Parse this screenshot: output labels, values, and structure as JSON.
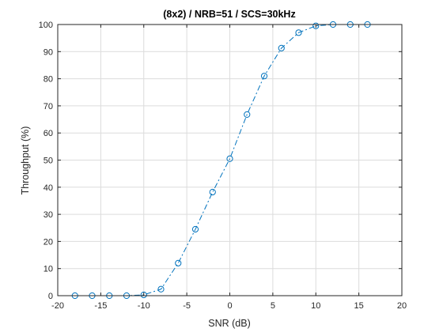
{
  "chart_data": {
    "type": "line",
    "title": "(8x2) / NRB=51 / SCS=30kHz",
    "xlabel": "SNR (dB)",
    "ylabel": "Throughput (%)",
    "xlim": [
      -20,
      20
    ],
    "ylim": [
      0,
      100
    ],
    "xticks": [
      -20,
      -15,
      -10,
      -5,
      0,
      5,
      10,
      15,
      20
    ],
    "yticks": [
      0,
      10,
      20,
      30,
      40,
      50,
      60,
      70,
      80,
      90,
      100
    ],
    "grid": true,
    "legend": "none",
    "series": [
      {
        "line_style": "dash-dot",
        "marker": "circle",
        "color": "#0072BD",
        "x": [
          -18,
          -16,
          -14,
          -12,
          -10,
          -8,
          -6,
          -4,
          -2,
          0,
          2,
          4,
          6,
          8,
          10,
          12,
          14,
          16
        ],
        "y": [
          0,
          0,
          0,
          0,
          0.3,
          2.4,
          12,
          24.5,
          38.2,
          50.5,
          66.8,
          81,
          91.3,
          97,
          99.5,
          100,
          100,
          100
        ]
      }
    ]
  },
  "colors": {
    "axis": "#262626",
    "grid": "#dcdcdc",
    "series": "#0072BD"
  }
}
